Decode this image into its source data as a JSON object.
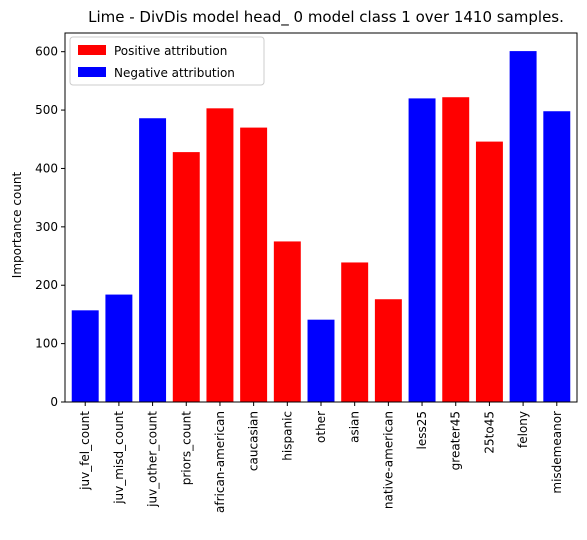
{
  "chart_data": {
    "type": "bar",
    "title": "Lime - DivDis model head_ 0 model class 1 over 1410 samples.",
    "xlabel": "",
    "ylabel": "Importance count",
    "ylim": [
      0,
      632
    ],
    "yticks": [
      0,
      100,
      200,
      300,
      400,
      500,
      600
    ],
    "categories": [
      "juv_fel_count",
      "juv_misd_count",
      "juv_other_count",
      "priors_count",
      "african-american",
      "caucasian",
      "hispanic",
      "other",
      "asian",
      "native-american",
      "less25",
      "greater45",
      "25to45",
      "felony",
      "misdemeanor"
    ],
    "values": [
      157,
      184,
      486,
      428,
      503,
      470,
      275,
      141,
      239,
      176,
      520,
      522,
      446,
      601,
      498
    ],
    "attribution": [
      "negative",
      "negative",
      "negative",
      "positive",
      "positive",
      "positive",
      "positive",
      "negative",
      "positive",
      "positive",
      "negative",
      "positive",
      "positive",
      "negative",
      "negative"
    ],
    "colors": {
      "positive": "#ff0000",
      "negative": "#0000ff"
    },
    "legend": {
      "placement": "top-left",
      "entries": [
        {
          "key": "positive",
          "label": "Positive attribution"
        },
        {
          "key": "negative",
          "label": "Negative attribution"
        }
      ]
    },
    "grid": false
  }
}
